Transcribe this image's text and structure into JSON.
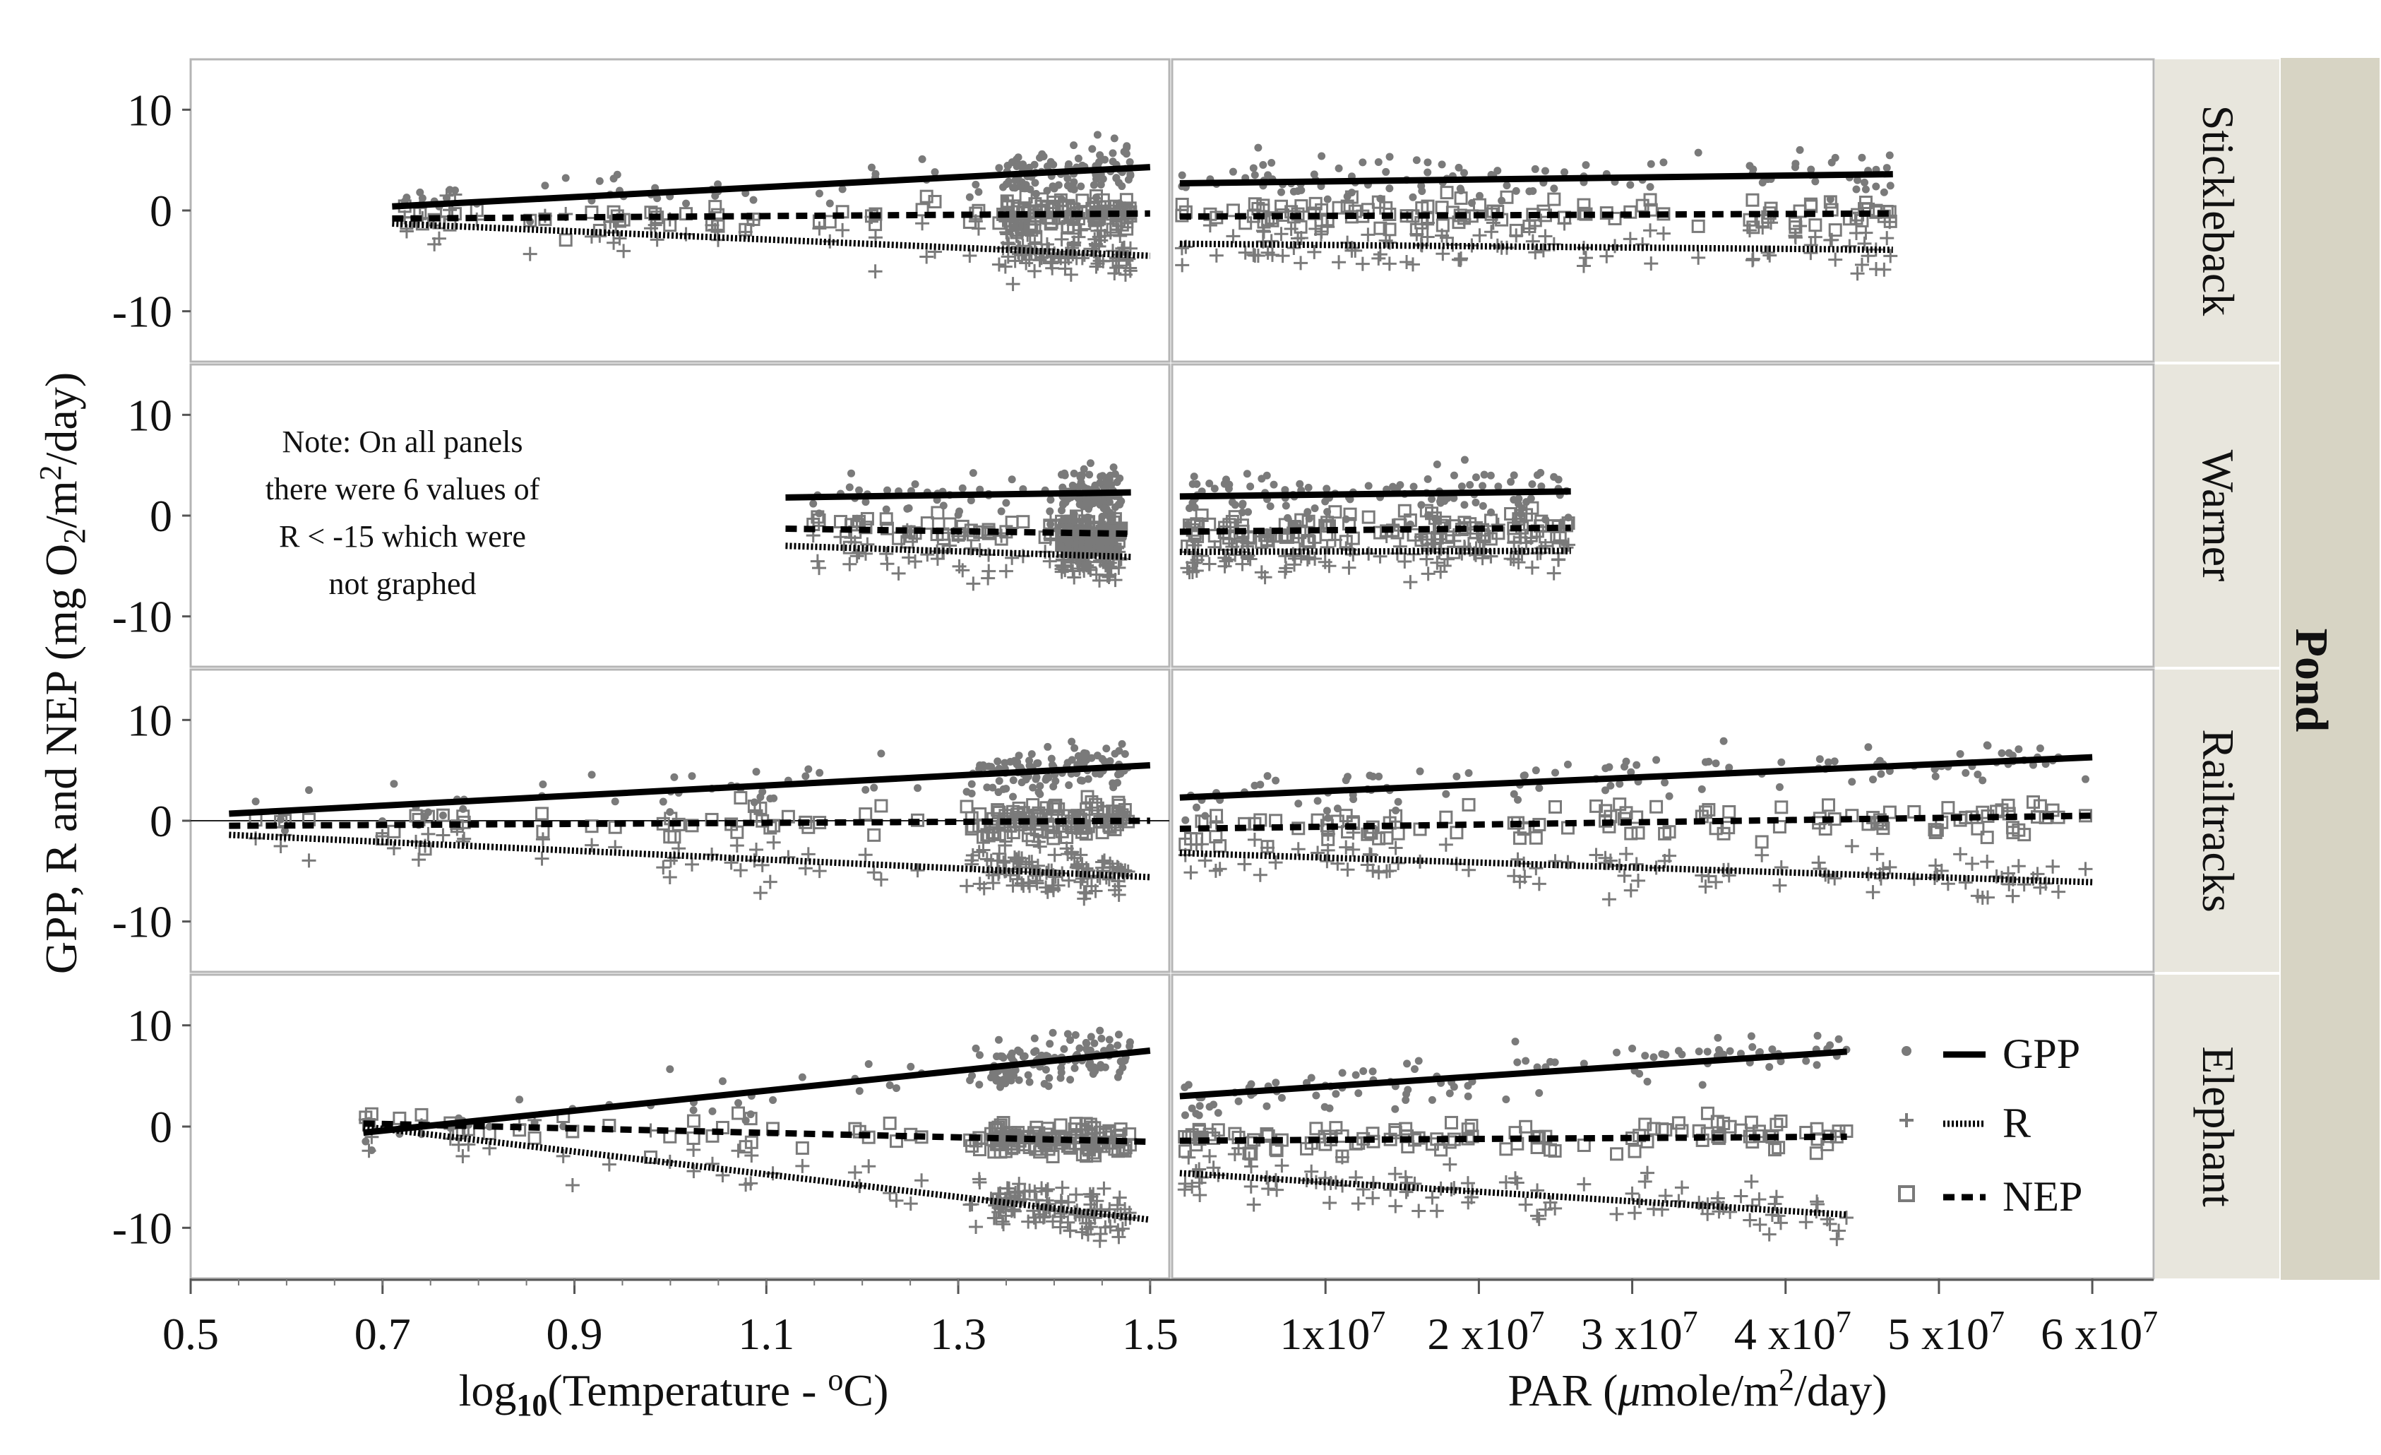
{
  "chart_data": {
    "type": "scatter",
    "ylabel": "GPP, R and NEP (mg O",
    "ylabel_sub": "2",
    "ylabel_tail": "/m",
    "ylabel_sup": "2",
    "ylabel_end": "/day)",
    "ylim": [
      -15,
      15
    ],
    "yticks": [
      10,
      0,
      -10
    ],
    "ytick_labels": [
      "10",
      "0",
      "-10"
    ],
    "strip_title": "Pond",
    "ponds": [
      "Stickleback",
      "Warner",
      "Railtracks",
      "Elephant"
    ],
    "columns": [
      {
        "xlabel_pre": "log",
        "xlabel_sub": "10",
        "xlabel_post": "(Temperature - ",
        "xlabel_sup": "o",
        "xlabel_end": "C)",
        "xlim": [
          0.5,
          1.52
        ],
        "ticks": [
          0.5,
          0.7,
          0.9,
          1.1,
          1.3,
          1.5
        ],
        "tick_labels": [
          "0.5",
          "0.7",
          "0.9",
          "1.1",
          "1.3",
          "1.5"
        ]
      },
      {
        "xlabel_pre": "PAR (",
        "xlabel_mu": "μ",
        "xlabel_post": "mole/m",
        "xlabel_sup": "2",
        "xlabel_end": "/day)",
        "xlim": [
          0,
          64000000
        ],
        "ticks": [
          10000000,
          20000000,
          30000000,
          40000000,
          50000000,
          60000000
        ],
        "tick_labels": [
          {
            "base": "1x10",
            "exp": "7"
          },
          {
            "base": "2 x10",
            "exp": "7"
          },
          {
            "base": "3 x10",
            "exp": "7"
          },
          {
            "base": "4 x10",
            "exp": "7"
          },
          {
            "base": "5 x10",
            "exp": "7"
          },
          {
            "base": "6 x10",
            "exp": "7"
          }
        ]
      }
    ],
    "series": [
      {
        "name": "GPP",
        "marker": "dot",
        "line": "solid"
      },
      {
        "name": "R",
        "marker": "plus",
        "line": "dotted"
      },
      {
        "name": "NEP",
        "marker": "square",
        "line": "dashed"
      }
    ],
    "fits": {
      "temperature": {
        "Stickleback": {
          "GPP": [
            [
              0.71,
              0.4
            ],
            [
              1.5,
              4.3
            ]
          ],
          "NEP": [
            [
              0.71,
              -0.8
            ],
            [
              1.5,
              -0.3
            ]
          ],
          "R": [
            [
              0.71,
              -1.3
            ],
            [
              1.5,
              -4.5
            ]
          ]
        },
        "Warner": {
          "GPP": [
            [
              1.12,
              1.8
            ],
            [
              1.48,
              2.3
            ]
          ],
          "NEP": [
            [
              1.12,
              -1.3
            ],
            [
              1.48,
              -1.8
            ]
          ],
          "R": [
            [
              1.12,
              -3.0
            ],
            [
              1.48,
              -4.1
            ]
          ]
        },
        "Railtracks": {
          "GPP": [
            [
              0.54,
              0.7
            ],
            [
              1.5,
              5.5
            ]
          ],
          "NEP": [
            [
              0.54,
              -0.5
            ],
            [
              1.5,
              0.0
            ]
          ],
          "R": [
            [
              0.54,
              -1.4
            ],
            [
              1.5,
              -5.6
            ]
          ]
        },
        "Elephant": {
          "GPP": [
            [
              0.68,
              -0.6
            ],
            [
              1.5,
              7.5
            ]
          ],
          "NEP": [
            [
              0.68,
              0.3
            ],
            [
              1.5,
              -1.5
            ]
          ],
          "R": [
            [
              0.68,
              0.0
            ],
            [
              1.5,
              -9.2
            ]
          ]
        }
      },
      "par": {
        "Stickleback": {
          "GPP": [
            [
              500000,
              2.7
            ],
            [
              47000000,
              3.6
            ]
          ],
          "NEP": [
            [
              500000,
              -0.6
            ],
            [
              47000000,
              -0.3
            ]
          ],
          "R": [
            [
              500000,
              -3.3
            ],
            [
              47000000,
              -3.9
            ]
          ]
        },
        "Warner": {
          "GPP": [
            [
              500000,
              1.9
            ],
            [
              26000000,
              2.4
            ]
          ],
          "NEP": [
            [
              500000,
              -1.6
            ],
            [
              26000000,
              -1.2
            ]
          ],
          "R": [
            [
              500000,
              -3.6
            ],
            [
              26000000,
              -3.5
            ]
          ]
        },
        "Railtracks": {
          "GPP": [
            [
              500000,
              2.3
            ],
            [
              60000000,
              6.3
            ]
          ],
          "NEP": [
            [
              500000,
              -0.8
            ],
            [
              60000000,
              0.5
            ]
          ],
          "R": [
            [
              500000,
              -3.2
            ],
            [
              60000000,
              -6.1
            ]
          ]
        },
        "Elephant": {
          "GPP": [
            [
              500000,
              3.0
            ],
            [
              44000000,
              7.4
            ]
          ],
          "NEP": [
            [
              500000,
              -1.4
            ],
            [
              44000000,
              -1.0
            ]
          ],
          "R": [
            [
              500000,
              -4.6
            ],
            [
              44000000,
              -8.7
            ]
          ]
        }
      }
    },
    "scatter_ranges": {
      "temperature": {
        "Stickleback": [
          0.71,
          1.48
        ],
        "Warner": [
          1.12,
          1.47
        ],
        "Railtracks": [
          0.54,
          1.48
        ],
        "Elephant": [
          0.68,
          1.48
        ]
      },
      "par": {
        "Stickleback": [
          500000,
          47000000
        ],
        "Warner": [
          500000,
          26000000
        ],
        "Railtracks": [
          500000,
          60000000
        ],
        "Elephant": [
          500000,
          44000000
        ]
      }
    },
    "note": [
      "Note: On all panels",
      "there were 6 values of",
      "R < -15 which were",
      "not graphed"
    ],
    "colors": {
      "points": "#7a7a7a",
      "lines": "#000000",
      "strip_bg": "#e8e6dd",
      "outer_strip_bg": "#d7d4c4",
      "frame": "#b5b5b5"
    }
  }
}
